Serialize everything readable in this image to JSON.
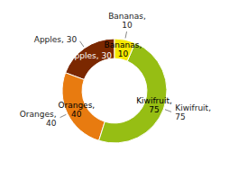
{
  "chart_data": {
    "type": "doughnut",
    "categories": [
      "Apples",
      "Oranges",
      "Kiwifruit",
      "Bananas"
    ],
    "values": [
      30,
      40,
      75,
      10
    ],
    "colors": [
      "#7B2800",
      "#E87B10",
      "#96BE14",
      "#F5E800"
    ],
    "data_labels": true,
    "value_labels": [
      "Apples, 30",
      "Oranges,\n40",
      "Kiwifruit,\n75",
      "Bananas,\n10"
    ]
  }
}
